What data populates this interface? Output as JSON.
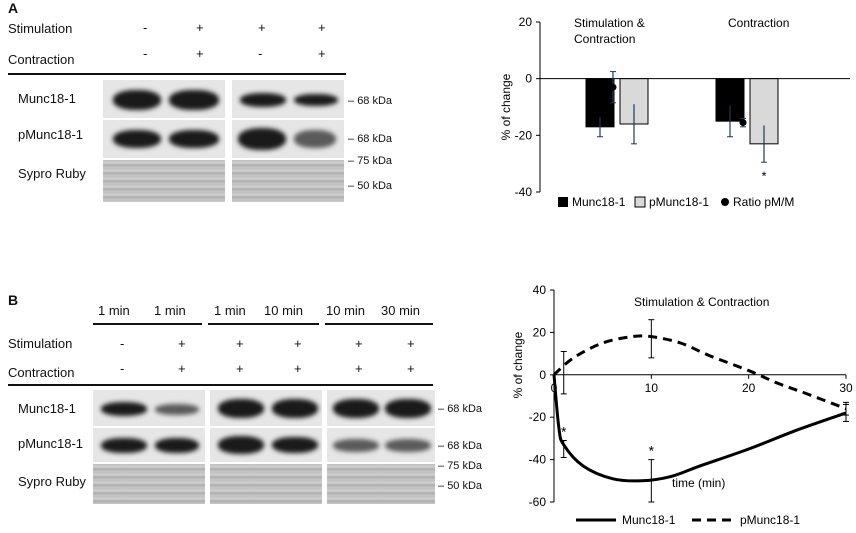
{
  "panel_a": {
    "letter": "A",
    "rows": {
      "stimulation": {
        "label": "Stimulation",
        "values": [
          "-",
          "+",
          "+",
          "+"
        ]
      },
      "contraction": {
        "label": "Contraction",
        "values": [
          "-",
          "+",
          "-",
          "+"
        ]
      }
    },
    "blot_labels": [
      "Munc18-1",
      "pMunc18-1",
      "Sypro Ruby"
    ],
    "kda_labels": [
      "68 kDa",
      "68 kDa",
      "75 kDa",
      "50 kDa"
    ]
  },
  "panel_b": {
    "letter": "B",
    "times": [
      "1 min",
      "1 min",
      "1 min",
      "10 min",
      "10 min",
      "30 min"
    ],
    "rows": {
      "stimulation": {
        "label": "Stimulation",
        "values": [
          "-",
          "+",
          "+",
          "+",
          "+",
          "+"
        ]
      },
      "contraction": {
        "label": "Contraction",
        "values": [
          "-",
          "+",
          "+",
          "+",
          "+",
          "+"
        ]
      }
    },
    "blot_labels": [
      "Munc18-1",
      "pMunc18-1",
      "Sypro Ruby"
    ],
    "kda_labels": [
      "68 kDa",
      "68 kDa",
      "75 kDa",
      "50 kDa"
    ]
  },
  "chart_data": [
    {
      "type": "bar",
      "ylabel": "% of change",
      "ylim": [
        -40,
        20
      ],
      "yticks": [
        20,
        0,
        -20,
        -40
      ],
      "categories": [
        "Stimulation & Contraction",
        "Contraction"
      ],
      "series": [
        {
          "name": "Munc18-1",
          "values": [
            -17,
            -15
          ],
          "errors": [
            3.5,
            5.5
          ],
          "color": "#000000"
        },
        {
          "name": "pMunc18-1",
          "values": [
            -16,
            -23
          ],
          "errors": [
            7,
            6.5
          ],
          "color": "#d9d9d9"
        },
        {
          "name": "Ratio pM/M",
          "values": [
            -3,
            -15.5
          ],
          "errors": [
            5.5,
            1.5
          ],
          "color": "#000000",
          "marker": "circle"
        }
      ],
      "annotations": [
        {
          "text": "*",
          "category": "Contraction",
          "series": "pMunc18-1"
        }
      ],
      "legend_position": "bottom"
    },
    {
      "type": "line",
      "title": "Stimulation & Contraction",
      "xlabel": "time (min)",
      "ylabel": "% of change",
      "xlim": [
        0,
        30
      ],
      "ylim": [
        -60,
        40
      ],
      "xticks": [
        0,
        10,
        20,
        30
      ],
      "yticks": [
        40,
        20,
        0,
        -20,
        -40,
        -60
      ],
      "series": [
        {
          "name": "Munc18-1",
          "style": "solid",
          "x": [
            0,
            0.5,
            1,
            3,
            6,
            9,
            12,
            15,
            20,
            25,
            30
          ],
          "y": [
            0,
            -25,
            -33,
            -43,
            -49,
            -50,
            -48,
            -43,
            -35,
            -26,
            -18
          ],
          "points": [
            {
              "x": 1,
              "y": -35,
              "err": 4
            },
            {
              "x": 10,
              "y": -50,
              "err": 10
            },
            {
              "x": 30,
              "y": -18,
              "err": 4
            }
          ]
        },
        {
          "name": "pMunc18-1",
          "style": "dashed",
          "x": [
            0,
            2,
            5,
            8,
            10,
            13,
            16,
            20,
            23,
            26,
            30
          ],
          "y": [
            0,
            8,
            15,
            18,
            18,
            15,
            9,
            2,
            -4,
            -9,
            -16
          ],
          "points": [
            {
              "x": 1,
              "y": 1,
              "err": 10
            },
            {
              "x": 10,
              "y": 17,
              "err": 9
            },
            {
              "x": 30,
              "y": -16,
              "err": 3
            }
          ]
        }
      ],
      "annotations": [
        {
          "text": "*",
          "x": 1
        },
        {
          "text": "*",
          "x": 10
        }
      ],
      "legend_position": "bottom"
    }
  ]
}
